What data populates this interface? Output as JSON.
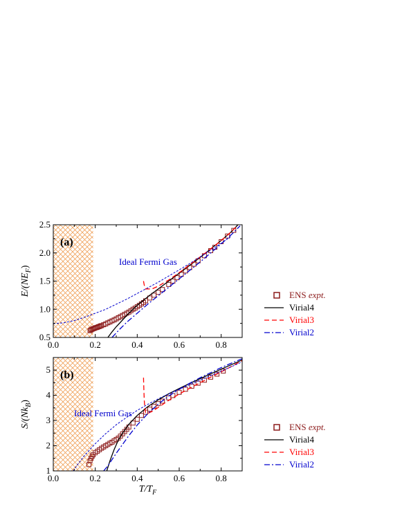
{
  "chart_data": [
    {
      "panel_label": "(a)",
      "type": "scatter",
      "ylabel": {
        "main": "E/(NE",
        "sub": "F",
        "close": ")"
      },
      "xlabel": "",
      "xlim": [
        0.0,
        0.9
      ],
      "ylim": [
        0.5,
        2.5
      ],
      "xticks": [
        "0.0",
        "0.2",
        "0.4",
        "0.6",
        "0.8"
      ],
      "yticks": [
        "0.5",
        "1.0",
        "1.5",
        "2.0",
        "2.5"
      ],
      "shaded_region": [
        0.0,
        0.19
      ],
      "annotation": "Ideal Fermi Gas",
      "legend": {
        "placement": "bottom-right",
        "entries": [
          {
            "name": "ENS",
            "suffix": "expt.",
            "marker": "square"
          },
          {
            "name": "Virial4"
          },
          {
            "name": "Virial3"
          },
          {
            "name": "Virial2"
          }
        ]
      },
      "series": [
        {
          "name": "ENS expt.",
          "style": "scatter",
          "color": "#8b1a1a",
          "x": [
            0.175,
            0.18,
            0.185,
            0.19,
            0.195,
            0.2,
            0.205,
            0.21,
            0.215,
            0.22,
            0.225,
            0.23,
            0.24,
            0.25,
            0.26,
            0.27,
            0.28,
            0.29,
            0.3,
            0.31,
            0.32,
            0.33,
            0.34,
            0.35,
            0.36,
            0.37,
            0.38,
            0.39,
            0.4,
            0.41,
            0.42,
            0.43,
            0.44,
            0.46,
            0.48,
            0.5,
            0.52,
            0.55,
            0.57,
            0.59,
            0.61,
            0.63,
            0.65,
            0.67,
            0.69,
            0.72,
            0.75,
            0.77,
            0.8,
            0.83,
            0.86
          ],
          "y": [
            0.62,
            0.635,
            0.645,
            0.655,
            0.66,
            0.67,
            0.675,
            0.68,
            0.69,
            0.695,
            0.705,
            0.71,
            0.725,
            0.74,
            0.76,
            0.775,
            0.795,
            0.81,
            0.83,
            0.85,
            0.87,
            0.89,
            0.91,
            0.93,
            0.95,
            0.975,
            1.0,
            1.02,
            1.045,
            1.07,
            1.095,
            1.12,
            1.15,
            1.2,
            1.25,
            1.3,
            1.35,
            1.44,
            1.5,
            1.56,
            1.62,
            1.68,
            1.74,
            1.8,
            1.86,
            1.95,
            2.04,
            2.1,
            2.2,
            2.3,
            2.4
          ]
        },
        {
          "name": "Virial4",
          "style": "solid",
          "color": "#000000",
          "x": [
            0.26,
            0.28,
            0.3,
            0.32,
            0.34,
            0.36,
            0.38,
            0.4,
            0.43,
            0.46,
            0.5,
            0.55,
            0.6,
            0.65,
            0.7,
            0.75,
            0.8,
            0.85,
            0.88
          ],
          "y": [
            0.5,
            0.6,
            0.69,
            0.77,
            0.85,
            0.93,
            1.0,
            1.07,
            1.16,
            1.25,
            1.36,
            1.5,
            1.64,
            1.78,
            1.92,
            2.07,
            2.22,
            2.38,
            2.5
          ]
        },
        {
          "name": "Virial3",
          "style": "dashed",
          "color": "#ff0000",
          "x": [
            0.43,
            0.433,
            0.436,
            0.44,
            0.45,
            0.47,
            0.5,
            0.55,
            0.6,
            0.65,
            0.7,
            0.75,
            0.8,
            0.85,
            0.88
          ],
          "y": [
            1.5,
            1.44,
            1.39,
            1.36,
            1.36,
            1.36,
            1.41,
            1.52,
            1.65,
            1.79,
            1.93,
            2.07,
            2.22,
            2.38,
            2.5
          ]
        },
        {
          "name": "Virial2",
          "style": "dashdot",
          "color": "#0000cd",
          "x": [
            0.28,
            0.3,
            0.32,
            0.35,
            0.4,
            0.45,
            0.5,
            0.55,
            0.6,
            0.65,
            0.7,
            0.75,
            0.8,
            0.85,
            0.89
          ],
          "y": [
            0.5,
            0.58,
            0.66,
            0.77,
            0.93,
            1.09,
            1.24,
            1.39,
            1.54,
            1.69,
            1.84,
            2.0,
            2.16,
            2.33,
            2.48
          ]
        },
        {
          "name": "Ideal Fermi Gas",
          "style": "dotted",
          "color": "#0000cd",
          "x": [
            0.0,
            0.05,
            0.1,
            0.15,
            0.2,
            0.25,
            0.3,
            0.35,
            0.4,
            0.45,
            0.5,
            0.55,
            0.6,
            0.65,
            0.7,
            0.75,
            0.8,
            0.85
          ],
          "y": [
            0.745,
            0.76,
            0.8,
            0.86,
            0.93,
            1.0,
            1.09,
            1.18,
            1.28,
            1.38,
            1.48,
            1.59,
            1.7,
            1.81,
            1.93,
            2.05,
            2.17,
            2.3
          ]
        }
      ]
    },
    {
      "panel_label": "(b)",
      "type": "scatter",
      "ylabel": {
        "main": "S/(Nk",
        "sub": "B",
        "close": ")"
      },
      "xlabel": {
        "main": "T/T",
        "sub": "F"
      },
      "xlim": [
        0.0,
        0.9
      ],
      "ylim": [
        1.0,
        5.5
      ],
      "xticks": [
        "0.0",
        "0.2",
        "0.4",
        "0.6",
        "0.8"
      ],
      "yticks": [
        "1",
        "2",
        "3",
        "4",
        "5"
      ],
      "shaded_region": [
        0.0,
        0.19
      ],
      "annotation": "Ideal Fermi Gas",
      "legend": {
        "placement": "bottom-right",
        "entries": [
          {
            "name": "ENS",
            "suffix": "expt.",
            "marker": "square"
          },
          {
            "name": "Virial4"
          },
          {
            "name": "Virial3"
          },
          {
            "name": "Virial2"
          }
        ]
      },
      "series": [
        {
          "name": "ENS expt.",
          "style": "scatter",
          "color": "#8b1a1a",
          "x": [
            0.17,
            0.175,
            0.18,
            0.185,
            0.19,
            0.2,
            0.21,
            0.22,
            0.23,
            0.24,
            0.25,
            0.26,
            0.27,
            0.28,
            0.29,
            0.3,
            0.31,
            0.32,
            0.33,
            0.34,
            0.35,
            0.36,
            0.38,
            0.4,
            0.42,
            0.44,
            0.46,
            0.48,
            0.5,
            0.52,
            0.55,
            0.57,
            0.6,
            0.63,
            0.66,
            0.69,
            0.72,
            0.75,
            0.78,
            0.81
          ],
          "y": [
            1.25,
            1.4,
            1.5,
            1.58,
            1.64,
            1.72,
            1.78,
            1.84,
            1.9,
            1.95,
            2.0,
            2.05,
            2.1,
            2.14,
            2.2,
            2.25,
            2.3,
            2.38,
            2.47,
            2.56,
            2.65,
            2.74,
            2.9,
            3.05,
            3.2,
            3.33,
            3.45,
            3.56,
            3.67,
            3.77,
            3.9,
            3.99,
            4.12,
            4.24,
            4.36,
            4.48,
            4.6,
            4.72,
            4.84,
            4.96
          ]
        },
        {
          "name": "Virial4",
          "style": "solid",
          "color": "#000000",
          "x": [
            0.255,
            0.27,
            0.29,
            0.31,
            0.33,
            0.36,
            0.4,
            0.45,
            0.5,
            0.55,
            0.6,
            0.65,
            0.7,
            0.75,
            0.8,
            0.85,
            0.9
          ],
          "y": [
            1.0,
            1.4,
            1.85,
            2.22,
            2.5,
            2.85,
            3.2,
            3.55,
            3.82,
            4.06,
            4.27,
            4.47,
            4.66,
            4.85,
            5.04,
            5.22,
            5.4
          ]
        },
        {
          "name": "Virial3",
          "style": "dashed",
          "color": "#ff0000",
          "x": [
            0.43,
            0.432,
            0.434,
            0.437,
            0.44,
            0.45,
            0.47,
            0.5,
            0.55,
            0.6,
            0.65,
            0.7,
            0.75,
            0.8,
            0.85,
            0.9
          ],
          "y": [
            4.7,
            4.15,
            3.75,
            3.45,
            3.3,
            3.28,
            3.36,
            3.52,
            3.8,
            4.05,
            4.28,
            4.5,
            4.72,
            4.93,
            5.15,
            5.38
          ]
        },
        {
          "name": "Virial2",
          "style": "dashdot",
          "color": "#0000cd",
          "x": [
            0.24,
            0.26,
            0.28,
            0.3,
            0.33,
            0.36,
            0.4,
            0.45,
            0.5,
            0.55,
            0.6,
            0.65,
            0.7,
            0.75,
            0.8,
            0.85,
            0.9
          ],
          "y": [
            1.0,
            1.2,
            1.45,
            1.7,
            2.05,
            2.4,
            2.82,
            3.27,
            3.65,
            3.97,
            4.24,
            4.48,
            4.7,
            4.9,
            5.1,
            5.28,
            5.45
          ]
        },
        {
          "name": "Ideal Fermi Gas",
          "style": "dotted",
          "color": "#0000cd",
          "x": [
            0.095,
            0.12,
            0.15,
            0.2,
            0.25,
            0.3,
            0.35,
            0.4,
            0.45,
            0.5,
            0.55,
            0.6,
            0.65,
            0.7,
            0.75,
            0.8,
            0.85,
            0.9
          ],
          "y": [
            1.0,
            1.3,
            1.62,
            2.08,
            2.48,
            2.83,
            3.13,
            3.4,
            3.64,
            3.86,
            4.06,
            4.24,
            4.42,
            4.6,
            4.78,
            4.96,
            5.14,
            5.33
          ]
        }
      ]
    }
  ]
}
